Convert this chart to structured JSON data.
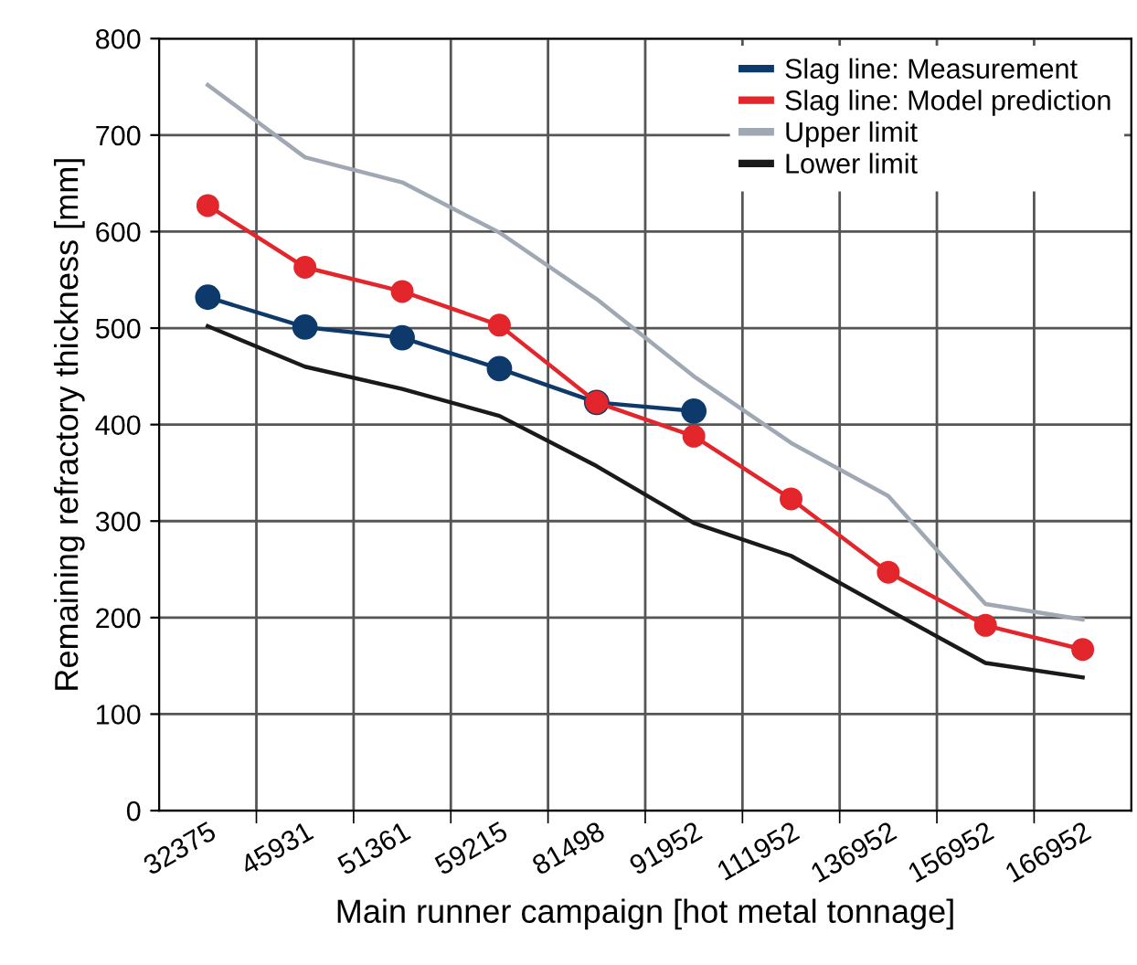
{
  "chart_data": {
    "type": "line",
    "xlabel": "Main runner campaign [hot metal tonnage]",
    "ylabel": "Remaining refractory thickness [mm]",
    "categories": [
      "32375",
      "45931",
      "51361",
      "59215",
      "81498",
      "91952",
      "111952",
      "136952",
      "156952",
      "166952"
    ],
    "ylim": [
      0,
      800
    ],
    "yticks": [
      0,
      100,
      200,
      300,
      400,
      500,
      600,
      700,
      800
    ],
    "grid": true,
    "legend": "top right",
    "series": [
      {
        "name": "Slag line: Measurement",
        "color": "#0d3a6b",
        "marker": "circle",
        "values": [
          532,
          501,
          490,
          458,
          423,
          414,
          null,
          null,
          null,
          null
        ]
      },
      {
        "name": "Slag line: Model prediction",
        "color": "#e3262b",
        "marker": "circle",
        "values": [
          627,
          563,
          538,
          503,
          423,
          388,
          323,
          247,
          192,
          167
        ]
      },
      {
        "name": "Upper limit",
        "color": "#a0a8b4",
        "marker": "none",
        "values": [
          752,
          677,
          651,
          599,
          530,
          450,
          381,
          326,
          214,
          198
        ]
      },
      {
        "name": "Lower limit",
        "color": "#1a1a1a",
        "marker": "none",
        "values": [
          502,
          460,
          437,
          409,
          357,
          298,
          264,
          208,
          153,
          138
        ]
      }
    ]
  }
}
